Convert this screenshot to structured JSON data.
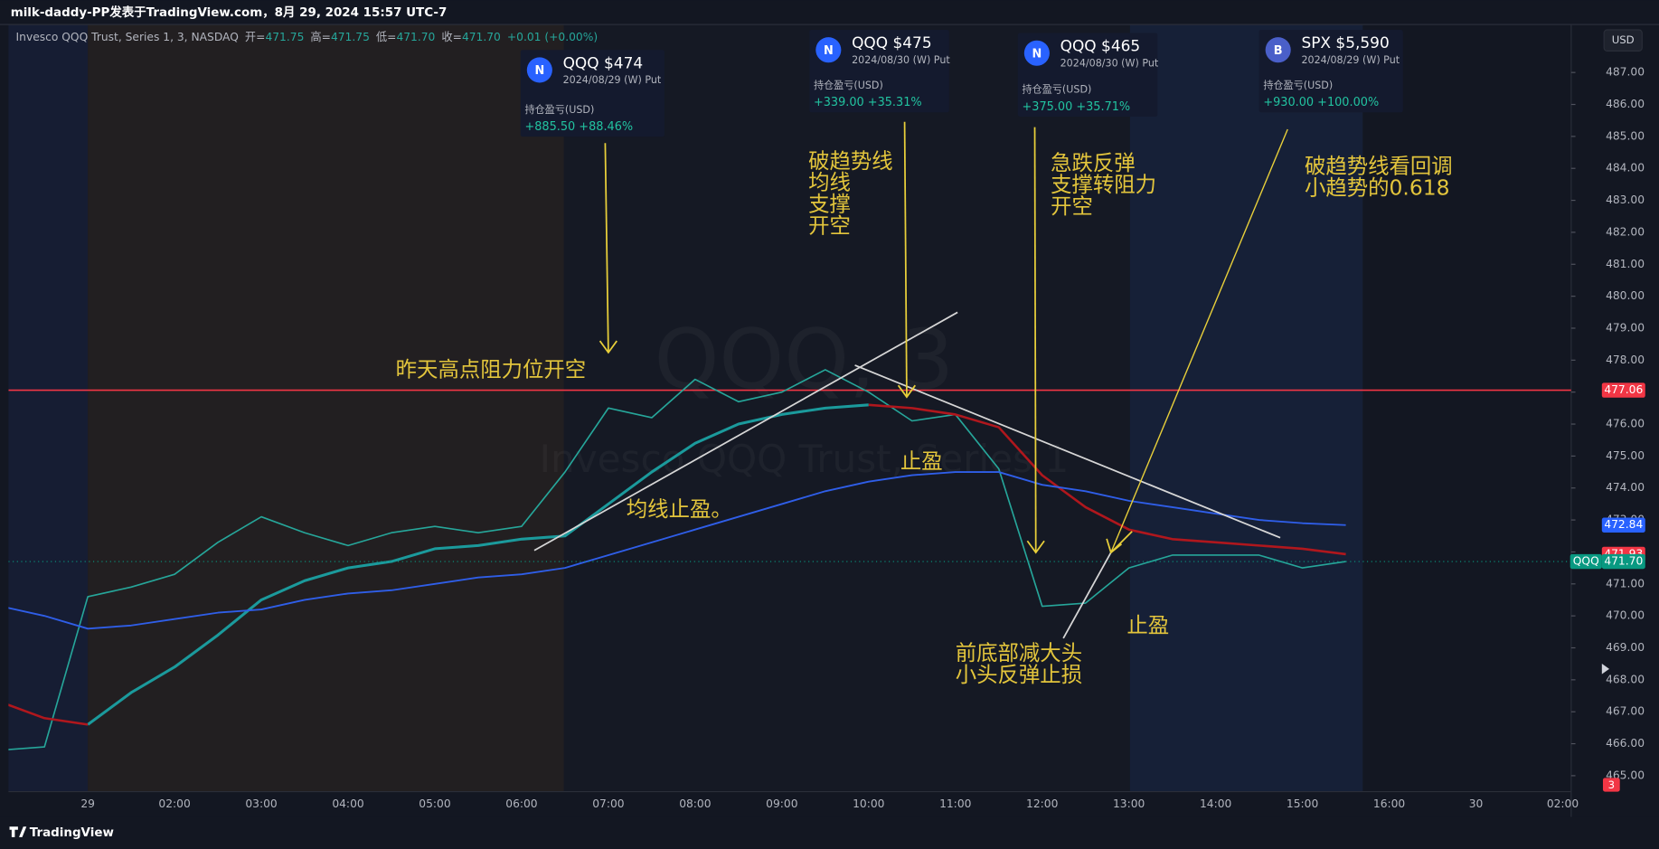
{
  "header": {
    "title": "milk-daddy-PP发表于TradingView.com，8月 29, 2024 15:57 UTC-7"
  },
  "legend": {
    "symbol": "Invesco QQQ Trust, Series 1, 3, NASDAQ",
    "fields": [
      {
        "label": "开=",
        "value": "471.75"
      },
      {
        "label": "高=",
        "value": "471.75"
      },
      {
        "label": "低=",
        "value": "471.70"
      },
      {
        "label": "收=",
        "value": "471.70"
      }
    ],
    "change": "+0.01 (+0.00%)"
  },
  "watermark": {
    "symbol": "QQQ, 3",
    "name": "Invesco QQQ Trust, Series 1"
  },
  "chart_data": {
    "type": "line",
    "categories": [
      null,
      null,
      "29",
      null,
      "02:00",
      null,
      "03:00",
      null,
      "04:00",
      null,
      "05:00",
      null,
      "06:00",
      null,
      "07:00",
      null,
      "08:00",
      null,
      "09:00",
      null,
      "10:00",
      null,
      "11:00",
      null,
      "12:00",
      null,
      "13:00",
      null,
      "14:00",
      null,
      "15:00",
      null,
      "16:00",
      null,
      "30",
      null,
      "02:00"
    ],
    "series": [
      {
        "color": "#26a69a",
        "values": [
          465.8,
          465.9,
          470.6,
          470.9,
          471.3,
          472.3,
          473.1,
          472.6,
          472.2,
          472.6,
          472.8,
          472.6,
          472.8,
          474.5,
          476.5,
          476.2,
          477.4,
          476.7,
          477.0,
          477.7,
          477.0,
          476.1,
          476.3,
          474.6,
          470.3,
          470.4,
          471.5,
          471.9,
          471.9,
          471.9,
          471.5,
          471.7,
          null,
          null,
          null,
          null,
          null
        ]
      },
      {
        "color": "#1b9a9c",
        "values": [
          null,
          null,
          466.6,
          467.6,
          468.4,
          469.4,
          470.5,
          471.1,
          471.5,
          471.7,
          472.1,
          472.2,
          472.4,
          472.5,
          473.5,
          474.5,
          475.4,
          476.0,
          476.3,
          476.5,
          476.6,
          null,
          null,
          null,
          null,
          null,
          null,
          null,
          null,
          null,
          null,
          null,
          null,
          null,
          null,
          null,
          null
        ]
      },
      {
        "color": "#b0171d",
        "values": [
          467.3,
          466.8,
          466.6,
          null,
          null,
          null,
          null,
          null,
          null,
          null,
          null,
          null,
          null,
          null,
          null,
          null,
          null,
          null,
          null,
          null,
          476.6,
          476.5,
          476.3,
          475.9,
          474.4,
          473.4,
          472.7,
          472.4,
          472.3,
          472.2,
          472.1,
          471.93,
          null,
          null,
          null,
          null,
          null
        ]
      },
      {
        "color": "#2f5ee8",
        "values": [
          470.3,
          470.0,
          469.6,
          469.7,
          469.9,
          470.1,
          470.2,
          470.5,
          470.7,
          470.8,
          471.0,
          471.2,
          471.3,
          471.5,
          471.9,
          472.3,
          472.7,
          473.1,
          473.5,
          473.9,
          474.2,
          474.4,
          474.5,
          474.5,
          474.1,
          473.9,
          473.6,
          473.4,
          473.2,
          473.0,
          472.9,
          472.84,
          null,
          null,
          null,
          null,
          null
        ]
      }
    ],
    "ylim": [
      464.5,
      488.5
    ],
    "yticks": [
      {
        "value": 465,
        "label": "465.00"
      },
      {
        "value": 466,
        "label": "466.00"
      },
      {
        "value": 467,
        "label": "467.00"
      },
      {
        "value": 468,
        "label": "468.00"
      },
      {
        "value": 469,
        "label": "469.00"
      },
      {
        "value": 470,
        "label": "470.00"
      },
      {
        "value": 471,
        "label": "471.00"
      },
      {
        "value": 472,
        "label": "472.00"
      },
      {
        "value": 473,
        "label": "473.00"
      },
      {
        "value": 474,
        "label": "474.00"
      },
      {
        "value": 475,
        "label": "475.00"
      },
      {
        "value": 476,
        "label": "476.00"
      },
      {
        "value": 477,
        "label": "477.00"
      },
      {
        "value": 478,
        "label": "478.00"
      },
      {
        "value": 479,
        "label": "479.00"
      },
      {
        "value": 480,
        "label": "480.00"
      },
      {
        "value": 481,
        "label": "481.00"
      },
      {
        "value": 482,
        "label": "482.00"
      },
      {
        "value": 483,
        "label": "483.00"
      },
      {
        "value": 484,
        "label": "484.00"
      },
      {
        "value": 485,
        "label": "485.00"
      },
      {
        "value": 486,
        "label": "486.00"
      },
      {
        "value": 487,
        "label": "487.00"
      }
    ],
    "grid": false,
    "hlines": [
      {
        "value": 477.06,
        "color": "#f23645"
      }
    ],
    "price_labels": [
      {
        "value": 472.84,
        "color": "#2962ff"
      },
      {
        "value": 471.93,
        "color": "#f23645"
      },
      {
        "value": 471.7,
        "label": "471.70",
        "color": "#089981",
        "tag": "QQQ"
      }
    ]
  },
  "cards": [
    {
      "icon": "N",
      "title": "QQQ $474",
      "subtitle": "2024/08/29 (W) Put",
      "label": "持仓盈亏(USD)",
      "pnl": "+885.50 +88.46%"
    },
    {
      "icon": "N",
      "title": "QQQ $475",
      "subtitle": "2024/08/30 (W) Put",
      "label": "持仓盈亏(USD)",
      "pnl": "+339.00 +35.31%"
    },
    {
      "icon": "N",
      "title": "QQQ $465",
      "subtitle": "2024/08/30 (W) Put",
      "label": "持仓盈亏(USD)",
      "pnl": "+375.00 +35.71%"
    },
    {
      "icon": "B",
      "title": "SPX $5,590",
      "subtitle": "2024/08/29 (W) Put",
      "label": "持仓盈亏(USD)",
      "pnl": "+930.00 +100.00%"
    }
  ],
  "annotations": [
    {
      "lines": [
        "昨天高点阻力位开空"
      ]
    },
    {
      "lines": [
        "破趋势线",
        "均线",
        "支撑",
        "开空"
      ]
    },
    {
      "lines": [
        "急跌反弹",
        "支撑转阻力",
        "开空"
      ]
    },
    {
      "lines": [
        "破趋势线看回调",
        "小趋势的0.618"
      ]
    },
    {
      "lines": [
        "止盈"
      ]
    },
    {
      "lines": [
        "均线止盈。"
      ]
    },
    {
      "lines": [
        "前底部减大头",
        "小头反弹止损"
      ]
    },
    {
      "lines": [
        "止盈"
      ]
    }
  ],
  "toolbar": {
    "currency": "USD",
    "alert_count": "3"
  },
  "footer": {
    "brand": "TradingView"
  }
}
